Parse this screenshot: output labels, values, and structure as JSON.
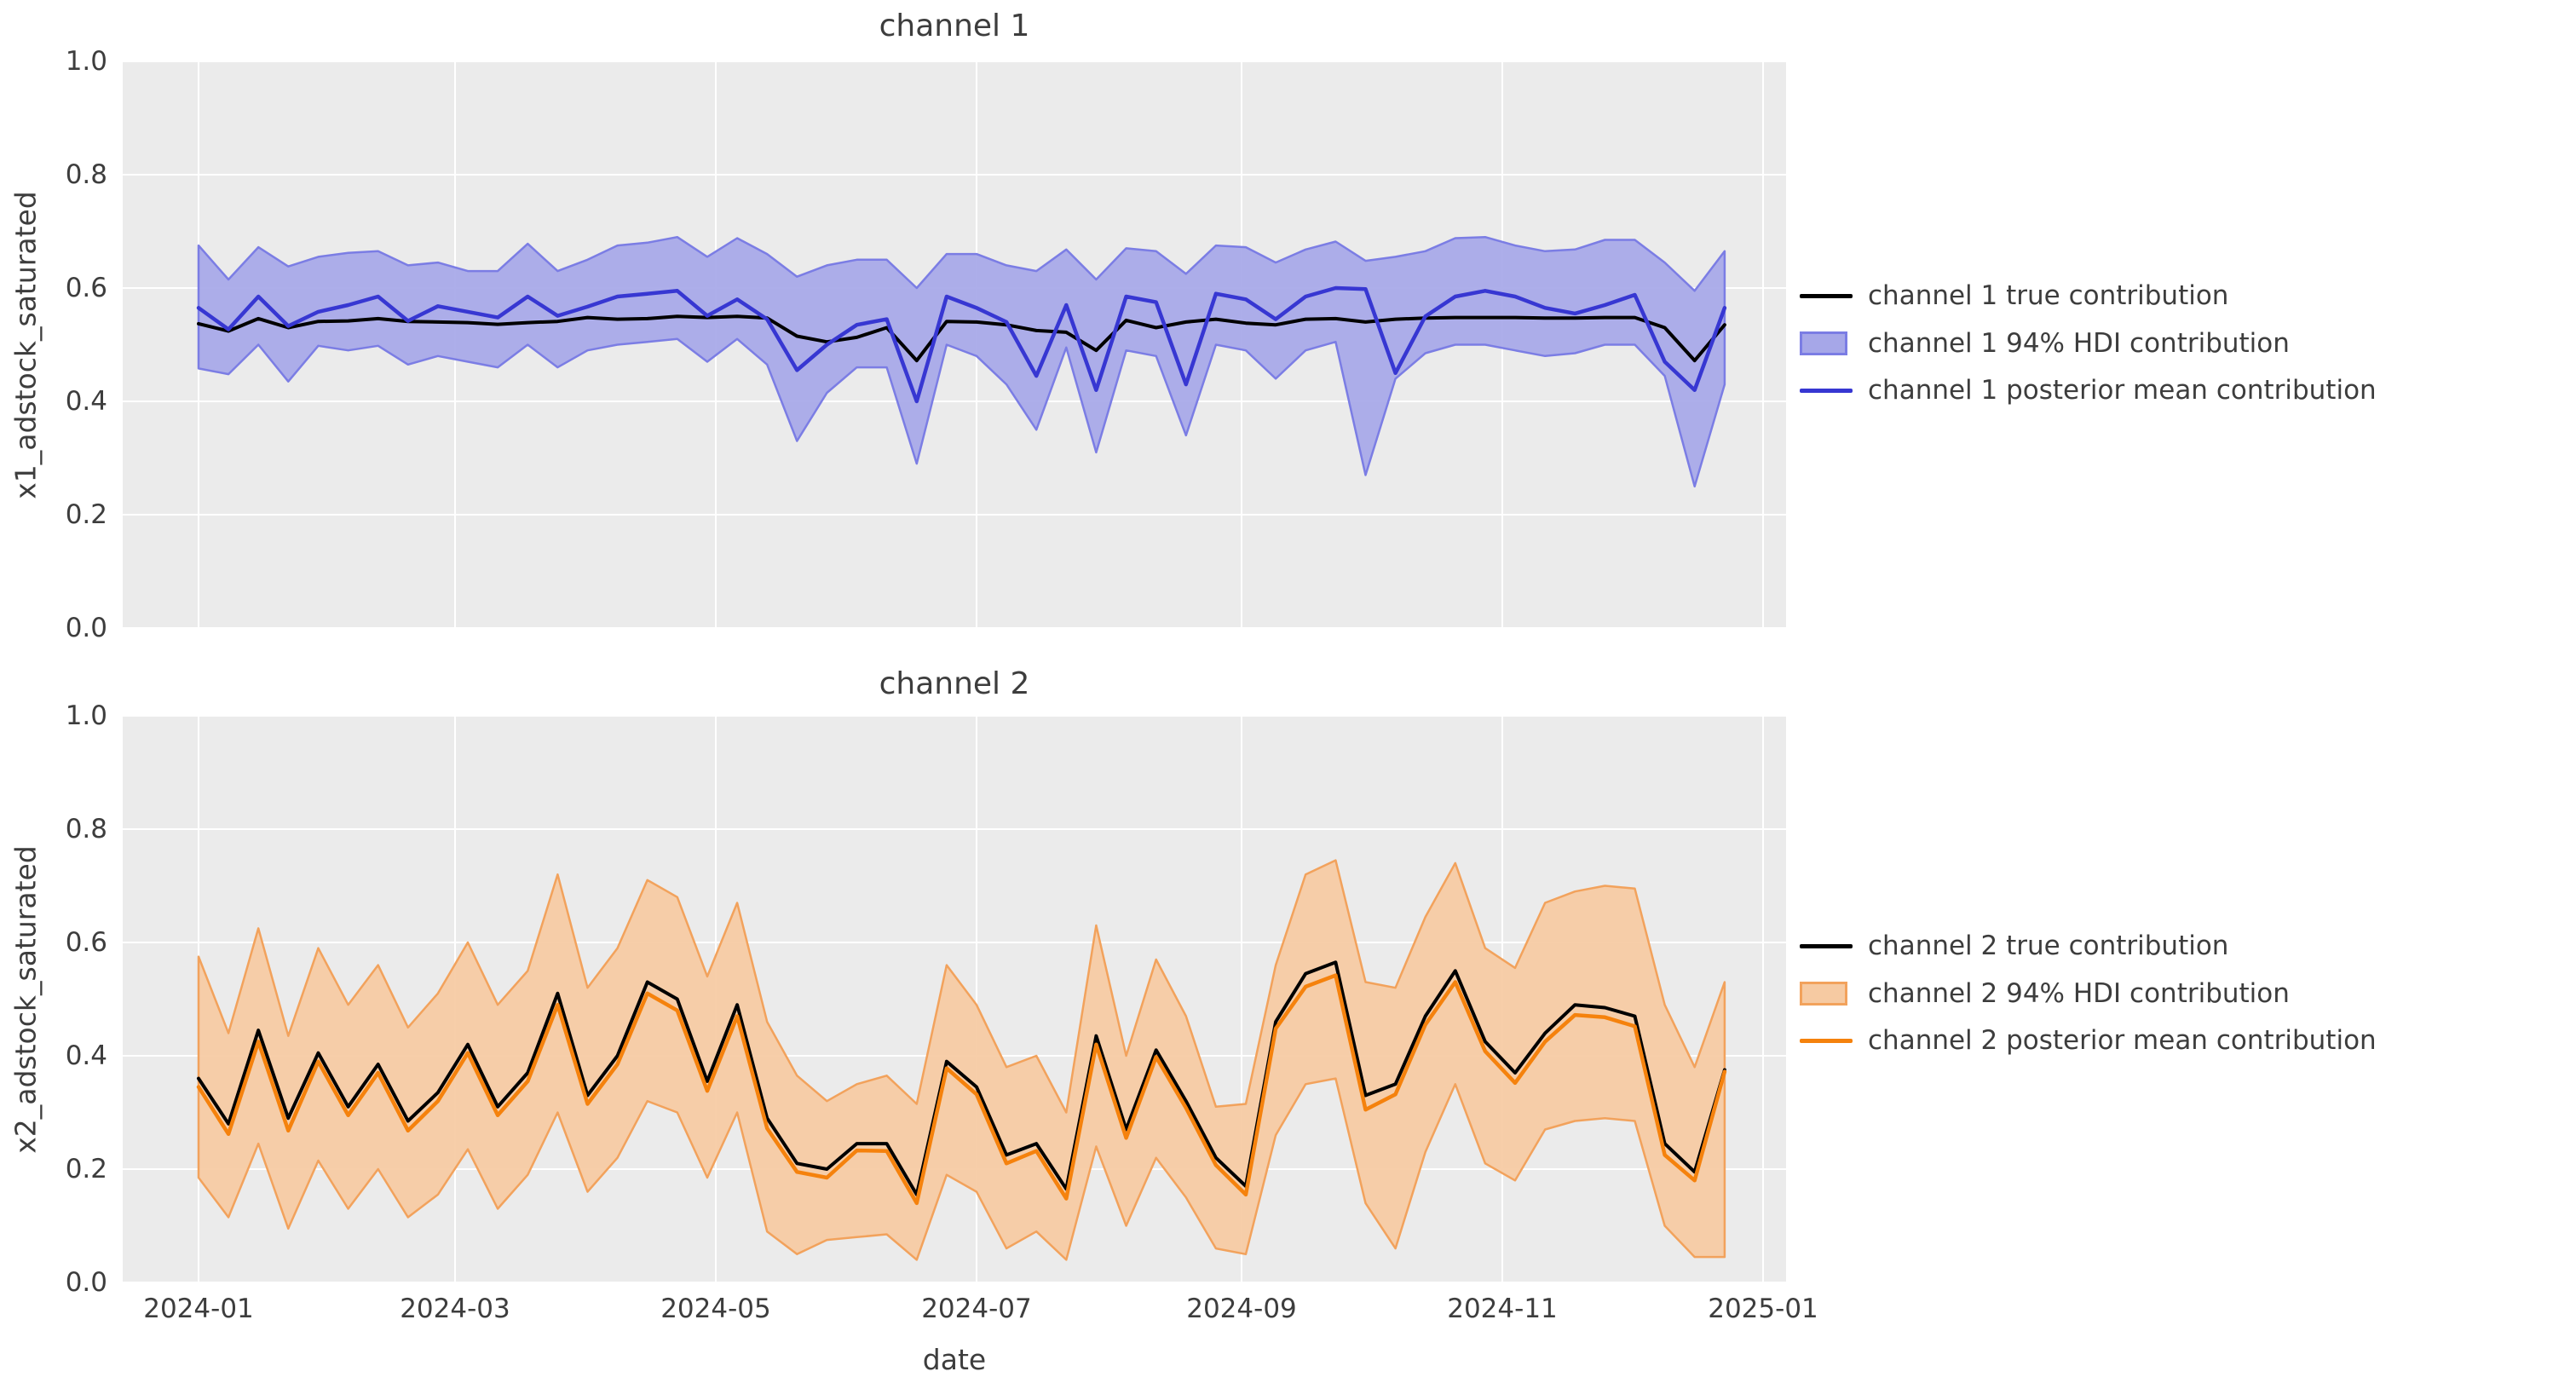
{
  "style": {
    "figure_bg": "#ffffff",
    "axes_bg": "#ebebeb",
    "grid_color": "#ffffff",
    "text_color": "#3d3d3d"
  },
  "x_axis": {
    "label": "date",
    "ticklabels": [
      "2024-01",
      "2024-03",
      "2024-05",
      "2024-07",
      "2024-09",
      "2024-11",
      "2025-01"
    ]
  },
  "chart_data": [
    {
      "type": "line+band",
      "title": "channel 1",
      "ylabel": "x1_adstock_saturated",
      "ylim": [
        0.0,
        1.0
      ],
      "grid": true,
      "legend_position": "right of plot",
      "yticklabels": [
        "0.0",
        "0.2",
        "0.4",
        "0.6",
        "0.8",
        "1.0"
      ],
      "x": [
        "2024-01-01",
        "2024-01-08",
        "2024-01-15",
        "2024-01-22",
        "2024-01-29",
        "2024-02-05",
        "2024-02-12",
        "2024-02-19",
        "2024-02-26",
        "2024-03-04",
        "2024-03-11",
        "2024-03-18",
        "2024-03-25",
        "2024-04-01",
        "2024-04-08",
        "2024-04-15",
        "2024-04-22",
        "2024-04-29",
        "2024-05-06",
        "2024-05-13",
        "2024-05-20",
        "2024-05-27",
        "2024-06-03",
        "2024-06-10",
        "2024-06-17",
        "2024-06-24",
        "2024-07-01",
        "2024-07-08",
        "2024-07-15",
        "2024-07-22",
        "2024-07-29",
        "2024-08-05",
        "2024-08-12",
        "2024-08-19",
        "2024-08-26",
        "2024-09-02",
        "2024-09-09",
        "2024-09-16",
        "2024-09-23",
        "2024-09-30",
        "2024-10-07",
        "2024-10-14",
        "2024-10-21",
        "2024-10-28",
        "2024-11-04",
        "2024-11-11",
        "2024-11-18",
        "2024-11-25",
        "2024-12-02",
        "2024-12-09",
        "2024-12-16",
        "2024-12-23"
      ],
      "series": [
        {
          "name": "channel 1 true contribution",
          "values": [
            0.537,
            0.524,
            0.546,
            0.53,
            0.541,
            0.542,
            0.546,
            0.541,
            0.54,
            0.539,
            0.536,
            0.539,
            0.541,
            0.548,
            0.545,
            0.546,
            0.55,
            0.548,
            0.55,
            0.547,
            0.515,
            0.505,
            0.513,
            0.53,
            0.472,
            0.541,
            0.54,
            0.535,
            0.525,
            0.522,
            0.49,
            0.543,
            0.53,
            0.54,
            0.545,
            0.538,
            0.535,
            0.545,
            0.546,
            0.54,
            0.545,
            0.547,
            0.548,
            0.548,
            0.548,
            0.547,
            0.547,
            0.548,
            0.548,
            0.53,
            0.472,
            0.535
          ]
        },
        {
          "name": "channel 1 posterior mean contribution",
          "values": [
            0.565,
            0.527,
            0.585,
            0.533,
            0.558,
            0.57,
            0.585,
            0.542,
            0.568,
            0.558,
            0.548,
            0.585,
            0.551,
            0.567,
            0.585,
            0.59,
            0.595,
            0.551,
            0.58,
            0.545,
            0.455,
            0.5,
            0.535,
            0.545,
            0.4,
            0.585,
            0.565,
            0.54,
            0.445,
            0.57,
            0.42,
            0.585,
            0.575,
            0.43,
            0.59,
            0.58,
            0.545,
            0.585,
            0.6,
            0.598,
            0.45,
            0.55,
            0.585,
            0.595,
            0.585,
            0.565,
            0.555,
            0.57,
            0.588,
            0.47,
            0.42,
            0.565
          ]
        },
        {
          "name": "channel 1 94% HDI contribution (lower)",
          "values": [
            0.458,
            0.448,
            0.5,
            0.435,
            0.498,
            0.49,
            0.498,
            0.465,
            0.48,
            0.47,
            0.46,
            0.5,
            0.46,
            0.49,
            0.5,
            0.505,
            0.51,
            0.47,
            0.51,
            0.465,
            0.33,
            0.415,
            0.46,
            0.46,
            0.29,
            0.5,
            0.48,
            0.43,
            0.35,
            0.495,
            0.31,
            0.49,
            0.48,
            0.34,
            0.5,
            0.49,
            0.44,
            0.49,
            0.505,
            0.27,
            0.44,
            0.485,
            0.5,
            0.5,
            0.49,
            0.48,
            0.485,
            0.5,
            0.5,
            0.445,
            0.25,
            0.43
          ]
        },
        {
          "name": "channel 1 94% HDI contribution (upper)",
          "values": [
            0.675,
            0.615,
            0.672,
            0.638,
            0.655,
            0.662,
            0.665,
            0.64,
            0.645,
            0.63,
            0.63,
            0.678,
            0.63,
            0.65,
            0.675,
            0.68,
            0.69,
            0.655,
            0.688,
            0.66,
            0.62,
            0.64,
            0.65,
            0.65,
            0.6,
            0.66,
            0.66,
            0.64,
            0.63,
            0.668,
            0.615,
            0.67,
            0.665,
            0.625,
            0.675,
            0.672,
            0.645,
            0.668,
            0.682,
            0.648,
            0.655,
            0.665,
            0.688,
            0.69,
            0.675,
            0.665,
            0.668,
            0.685,
            0.685,
            0.645,
            0.595,
            0.665
          ]
        }
      ],
      "legend": [
        "channel 1 true contribution",
        "channel 1 94% HDI contribution",
        "channel 1 posterior mean contribution"
      ],
      "colors": {
        "true_line": "#000000",
        "mean_line": "#3737d2",
        "band_fill": "#a6a7e8",
        "band_edge": "#7b7de4"
      }
    },
    {
      "type": "line+band",
      "title": "channel 2",
      "ylabel": "x2_adstock_saturated",
      "ylim": [
        0.0,
        1.0
      ],
      "grid": true,
      "legend_position": "right of plot",
      "yticklabels": [
        "0.0",
        "0.2",
        "0.4",
        "0.6",
        "0.8",
        "1.0"
      ],
      "x": [
        "2024-01-01",
        "2024-01-08",
        "2024-01-15",
        "2024-01-22",
        "2024-01-29",
        "2024-02-05",
        "2024-02-12",
        "2024-02-19",
        "2024-02-26",
        "2024-03-04",
        "2024-03-11",
        "2024-03-18",
        "2024-03-25",
        "2024-04-01",
        "2024-04-08",
        "2024-04-15",
        "2024-04-22",
        "2024-04-29",
        "2024-05-06",
        "2024-05-13",
        "2024-05-20",
        "2024-05-27",
        "2024-06-03",
        "2024-06-10",
        "2024-06-17",
        "2024-06-24",
        "2024-07-01",
        "2024-07-08",
        "2024-07-15",
        "2024-07-22",
        "2024-07-29",
        "2024-08-05",
        "2024-08-12",
        "2024-08-19",
        "2024-08-26",
        "2024-09-02",
        "2024-09-09",
        "2024-09-16",
        "2024-09-23",
        "2024-09-30",
        "2024-10-07",
        "2024-10-14",
        "2024-10-21",
        "2024-10-28",
        "2024-11-04",
        "2024-11-11",
        "2024-11-18",
        "2024-11-25",
        "2024-12-02",
        "2024-12-09",
        "2024-12-16",
        "2024-12-23"
      ],
      "series": [
        {
          "name": "channel 2 true contribution",
          "values": [
            0.36,
            0.28,
            0.445,
            0.29,
            0.405,
            0.31,
            0.385,
            0.285,
            0.335,
            0.42,
            0.31,
            0.37,
            0.51,
            0.33,
            0.4,
            0.53,
            0.5,
            0.355,
            0.49,
            0.29,
            0.21,
            0.2,
            0.245,
            0.245,
            0.155,
            0.39,
            0.345,
            0.225,
            0.245,
            0.165,
            0.435,
            0.27,
            0.41,
            0.32,
            0.22,
            0.17,
            0.46,
            0.545,
            0.565,
            0.33,
            0.35,
            0.47,
            0.55,
            0.425,
            0.37,
            0.44,
            0.49,
            0.485,
            0.47,
            0.245,
            0.195,
            0.375
          ]
        },
        {
          "name": "channel 2 posterior mean contribution",
          "values": [
            0.345,
            0.262,
            0.425,
            0.268,
            0.39,
            0.295,
            0.37,
            0.268,
            0.32,
            0.405,
            0.295,
            0.355,
            0.49,
            0.315,
            0.385,
            0.51,
            0.48,
            0.338,
            0.47,
            0.272,
            0.195,
            0.185,
            0.233,
            0.232,
            0.14,
            0.378,
            0.332,
            0.21,
            0.232,
            0.148,
            0.42,
            0.255,
            0.398,
            0.308,
            0.207,
            0.155,
            0.448,
            0.522,
            0.542,
            0.305,
            0.332,
            0.455,
            0.53,
            0.408,
            0.352,
            0.425,
            0.472,
            0.468,
            0.452,
            0.225,
            0.18,
            0.372
          ]
        },
        {
          "name": "channel 2 94% HDI contribution (lower)",
          "values": [
            0.185,
            0.115,
            0.245,
            0.095,
            0.215,
            0.13,
            0.2,
            0.115,
            0.155,
            0.235,
            0.13,
            0.19,
            0.3,
            0.16,
            0.22,
            0.32,
            0.3,
            0.185,
            0.3,
            0.09,
            0.05,
            0.075,
            0.08,
            0.085,
            0.04,
            0.19,
            0.16,
            0.06,
            0.09,
            0.04,
            0.24,
            0.1,
            0.22,
            0.15,
            0.06,
            0.05,
            0.26,
            0.35,
            0.36,
            0.14,
            0.06,
            0.23,
            0.35,
            0.21,
            0.18,
            0.27,
            0.285,
            0.29,
            0.285,
            0.1,
            0.045,
            0.045
          ]
        },
        {
          "name": "channel 2 94% HDI contribution (upper)",
          "values": [
            0.575,
            0.44,
            0.625,
            0.435,
            0.59,
            0.49,
            0.56,
            0.45,
            0.51,
            0.6,
            0.49,
            0.55,
            0.72,
            0.52,
            0.59,
            0.71,
            0.68,
            0.54,
            0.67,
            0.46,
            0.365,
            0.32,
            0.35,
            0.365,
            0.315,
            0.56,
            0.49,
            0.38,
            0.4,
            0.3,
            0.63,
            0.4,
            0.57,
            0.47,
            0.31,
            0.315,
            0.56,
            0.72,
            0.745,
            0.53,
            0.52,
            0.645,
            0.74,
            0.59,
            0.555,
            0.67,
            0.69,
            0.7,
            0.695,
            0.49,
            0.38,
            0.53
          ]
        }
      ],
      "legend": [
        "channel 2 true contribution",
        "channel 2 94% HDI contribution",
        "channel 2 posterior mean contribution"
      ],
      "colors": {
        "true_line": "#000000",
        "mean_line": "#f5820d",
        "band_fill": "#f6caa2",
        "band_edge": "#f2a25c"
      }
    }
  ]
}
